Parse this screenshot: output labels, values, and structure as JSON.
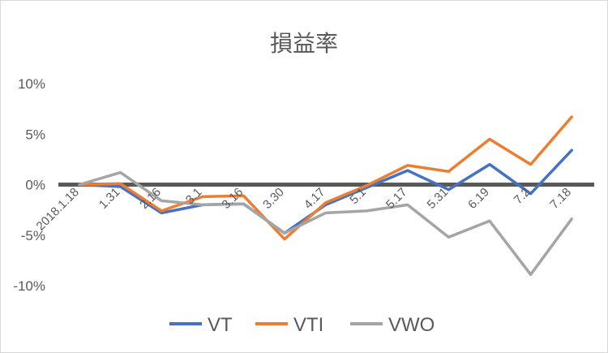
{
  "chart_data": {
    "type": "line",
    "title": "損益率",
    "x": [
      "2018.1.18",
      "1.31",
      "2.16",
      "3.1",
      "3.16",
      "3.30",
      "4.17",
      "5.1",
      "5.17",
      "5.31",
      "6.19",
      "7.2",
      "7.18"
    ],
    "ylim": [
      -10,
      10
    ],
    "yticks": [
      10,
      5,
      0,
      -5,
      -10
    ],
    "ytick_labels": [
      "10%",
      "5%",
      "0%",
      "-5%",
      "-10%"
    ],
    "grid": false,
    "zero_line": true,
    "legend_position": "bottom",
    "series": [
      {
        "name": "VT",
        "color": "#4472c4",
        "values": [
          0,
          -0.2,
          -2.8,
          -2.0,
          -1.9,
          -4.8,
          -2.0,
          -0.3,
          1.4,
          -0.5,
          2.0,
          -0.9,
          3.4
        ]
      },
      {
        "name": "VTI",
        "color": "#ed7d31",
        "values": [
          0,
          0.1,
          -2.6,
          -1.2,
          -1.1,
          -5.4,
          -1.8,
          -0.1,
          1.9,
          1.3,
          4.5,
          2.0,
          6.7
        ]
      },
      {
        "name": "VWO",
        "color": "#a5a5a5",
        "values": [
          0,
          1.2,
          -1.6,
          -2.0,
          -1.9,
          -4.8,
          -2.8,
          -2.6,
          -2.0,
          -5.2,
          -3.6,
          -8.9,
          -3.4
        ]
      }
    ]
  }
}
